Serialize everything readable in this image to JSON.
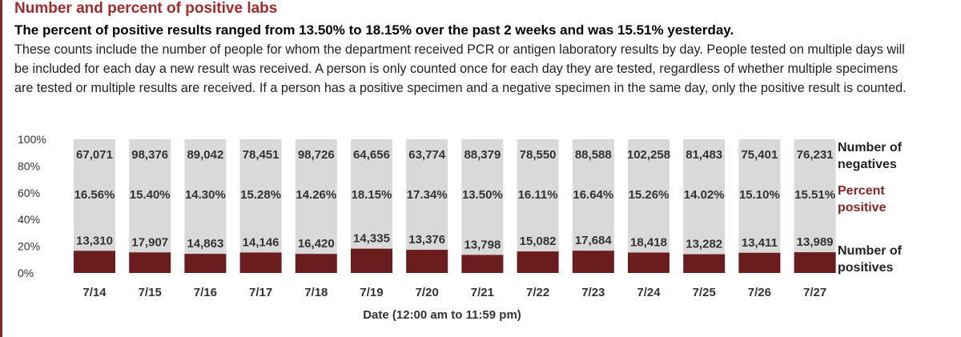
{
  "header": {
    "title": "Number and percent of positive labs",
    "subtitle": "The percent of positive results ranged from 13.50% to 18.15% over the past 2 weeks and was 15.51% yesterday.",
    "description": "These counts include the number of people for whom the department received PCR or antigen laboratory results by day. People tested on multiple days will be included for each day a new result was received. A person is only counted once for each day they are tested, regardless of whether multiple specimens are tested or multiple results are received. If a person has a positive specimen and a negative specimen in the same day, only the positive result is counted."
  },
  "colors": {
    "accent": "#a52a2a",
    "positives": "#6b1d1d",
    "negatives": "#d9d9d9",
    "percent_text": "#8b2323"
  },
  "chart_data": {
    "type": "bar",
    "stacked": "percent",
    "categories": [
      "7/14",
      "7/15",
      "7/16",
      "7/17",
      "7/18",
      "7/19",
      "7/20",
      "7/21",
      "7/22",
      "7/23",
      "7/24",
      "7/25",
      "7/26",
      "7/27"
    ],
    "series": [
      {
        "name": "Number of positives",
        "values": [
          13310,
          17907,
          14863,
          14146,
          16420,
          14335,
          13376,
          13798,
          15082,
          17684,
          18418,
          13282,
          13411,
          13989
        ]
      },
      {
        "name": "Number of negatives",
        "values": [
          67071,
          98376,
          89042,
          78451,
          98726,
          64656,
          63774,
          88379,
          78550,
          88588,
          102258,
          81483,
          75401,
          76231
        ]
      }
    ],
    "percent_positive": [
      "16.56%",
      "15.40%",
      "14.30%",
      "15.28%",
      "14.26%",
      "18.15%",
      "17.34%",
      "13.50%",
      "16.11%",
      "16.64%",
      "15.26%",
      "14.02%",
      "15.10%",
      "15.51%"
    ],
    "percent_positive_values": [
      16.56,
      15.4,
      14.3,
      15.28,
      14.26,
      18.15,
      17.34,
      13.5,
      16.11,
      16.64,
      15.26,
      14.02,
      15.1,
      15.51
    ],
    "positives_labels": [
      "13,310",
      "17,907",
      "14,863",
      "14,146",
      "16,420",
      "14,335",
      "13,376",
      "13,798",
      "15,082",
      "17,684",
      "18,418",
      "13,282",
      "13,411",
      "13,989"
    ],
    "negatives_labels": [
      "67,071",
      "98,376",
      "89,042",
      "78,451",
      "98,726",
      "64,656",
      "63,774",
      "88,379",
      "78,550",
      "88,588",
      "102,258",
      "81,483",
      "75,401",
      "76,231"
    ],
    "y_ticks": [
      "100%",
      "80%",
      "60%",
      "40%",
      "20%",
      "0%"
    ],
    "ylim": [
      0,
      100
    ],
    "xlabel": "Date (12:00 am to 11:59 pm)",
    "legend": {
      "negatives": [
        "Number of",
        "negatives"
      ],
      "percent": [
        "Percent",
        "positive"
      ],
      "positives": [
        "Number of",
        "positives"
      ]
    },
    "legend_placement": "right",
    "grid": false
  }
}
